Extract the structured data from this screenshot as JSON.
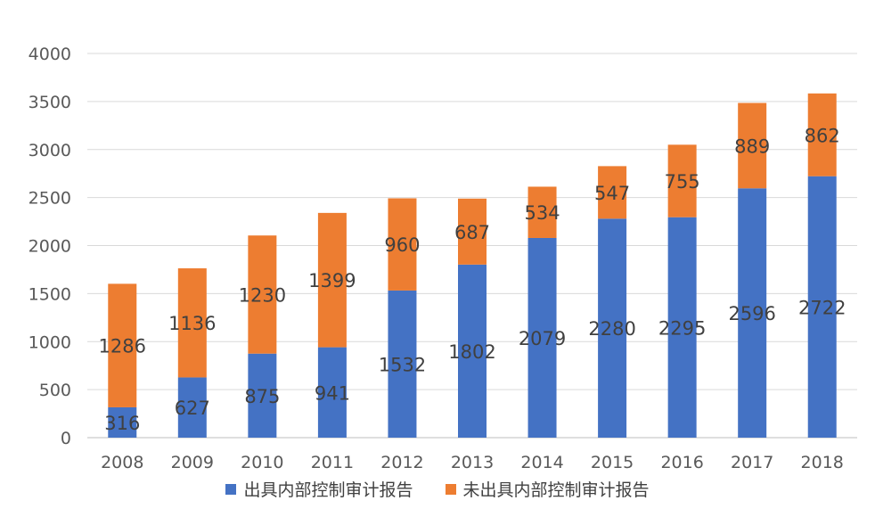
{
  "chart_data": {
    "type": "bar",
    "stacked": true,
    "title": "",
    "xlabel": "",
    "ylabel": "",
    "ylim": [
      0,
      4000
    ],
    "yticks": [
      0,
      500,
      1000,
      1500,
      2000,
      2500,
      3000,
      3500,
      4000
    ],
    "grid": true,
    "legend_position": "bottom",
    "categories": [
      "2008",
      "2009",
      "2010",
      "2011",
      "2012",
      "2013",
      "2014",
      "2015",
      "2016",
      "2017",
      "2018"
    ],
    "series": [
      {
        "name": "出具内部控制审计报告",
        "color": "#4472C4",
        "values": [
          316,
          627,
          875,
          941,
          1532,
          1802,
          2079,
          2280,
          2295,
          2596,
          2722
        ]
      },
      {
        "name": "未出具内部控制审计报告",
        "color": "#ED7D31",
        "values": [
          1286,
          1136,
          1230,
          1399,
          960,
          687,
          534,
          547,
          755,
          889,
          862
        ]
      }
    ]
  }
}
